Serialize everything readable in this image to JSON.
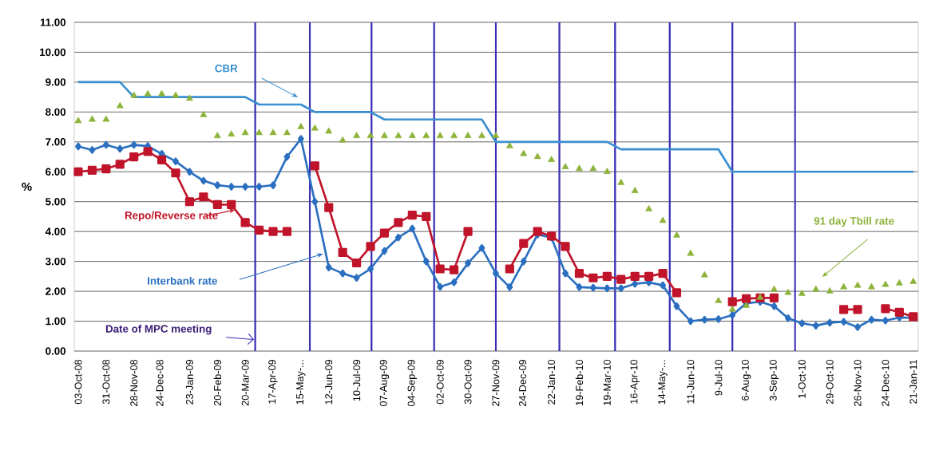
{
  "chart_data": {
    "type": "line",
    "ylabel": "%",
    "x": [
      "2008-10-03",
      "2008-10-17",
      "2008-10-31",
      "2008-11-14",
      "2008-11-28",
      "2008-12-12",
      "2008-12-26",
      "2009-01-09",
      "2009-01-23",
      "2009-02-06",
      "2009-02-20",
      "2009-03-06",
      "2009-03-20",
      "2009-04-03",
      "2009-04-17",
      "2009-05-01",
      "2009-05-15",
      "2009-05-29",
      "2009-06-12",
      "2009-06-26",
      "2009-07-10",
      "2009-07-24",
      "2009-08-07",
      "2009-08-21",
      "2009-09-04",
      "2009-09-18",
      "2009-10-02",
      "2009-10-16",
      "2009-10-30",
      "2009-11-13",
      "2009-11-27",
      "2009-12-11",
      "2009-12-25",
      "2010-01-08",
      "2010-01-22",
      "2010-02-05",
      "2010-02-19",
      "2010-03-05",
      "2010-03-19",
      "2010-04-02",
      "2010-04-16",
      "2010-04-30",
      "2010-05-14",
      "2010-05-28",
      "2010-06-11",
      "2010-06-25",
      "2010-07-09",
      "2010-07-23",
      "2010-08-06",
      "2010-08-20",
      "2010-09-03",
      "2010-09-17",
      "2010-10-01",
      "2010-10-15",
      "2010-10-29",
      "2010-11-12",
      "2010-11-26",
      "2010-12-10",
      "2010-12-24",
      "2011-01-07",
      "2011-01-21"
    ],
    "series": [
      {
        "name": "CBR",
        "color": "#3a8fd0",
        "marker": "none",
        "values": [
          9.0,
          9.0,
          9.0,
          9.0,
          8.5,
          8.5,
          8.5,
          8.5,
          8.5,
          8.5,
          8.5,
          8.5,
          8.5,
          8.25,
          8.25,
          8.25,
          8.25,
          8.0,
          8.0,
          8.0,
          8.0,
          8.0,
          7.75,
          7.75,
          7.75,
          7.75,
          7.75,
          7.75,
          7.75,
          7.75,
          7.0,
          7.0,
          7.0,
          7.0,
          7.0,
          7.0,
          7.0,
          7.0,
          7.0,
          6.75,
          6.75,
          6.75,
          6.75,
          6.75,
          6.75,
          6.75,
          6.75,
          6.0,
          6.0,
          6.0,
          6.0,
          6.0,
          6.0,
          6.0,
          6.0,
          6.0,
          6.0,
          6.0,
          6.0,
          6.0,
          6.0
        ]
      },
      {
        "name": "91 day Tbill rate",
        "type": "scatter",
        "color": "#8db33a",
        "marker": "triangle",
        "values": [
          7.7,
          7.75,
          7.75,
          8.2,
          8.55,
          8.6,
          8.6,
          8.55,
          8.45,
          7.9,
          7.2,
          7.25,
          7.3,
          7.3,
          7.3,
          7.3,
          7.5,
          7.45,
          7.35,
          7.05,
          7.2,
          7.2,
          7.2,
          7.2,
          7.2,
          7.2,
          7.2,
          7.2,
          7.2,
          7.2,
          7.2,
          6.86,
          6.6,
          6.5,
          6.4,
          6.16,
          6.1,
          6.1,
          6.0,
          5.63,
          5.36,
          4.75,
          4.36,
          3.87,
          3.26,
          2.54,
          1.68,
          1.39,
          1.52,
          1.79,
          2.06,
          1.95,
          1.92,
          2.06,
          2.0,
          2.14,
          2.19,
          2.14,
          2.22,
          2.27,
          2.32
        ]
      },
      {
        "name": "Interbank rate",
        "color": "#2a6fc0",
        "marker": "diamond",
        "values": [
          6.85,
          6.73,
          6.9,
          6.77,
          6.9,
          6.86,
          6.6,
          6.35,
          6.0,
          5.7,
          5.55,
          5.5,
          5.5,
          5.5,
          5.55,
          6.5,
          7.1,
          5.0,
          2.8,
          2.6,
          2.45,
          2.75,
          3.35,
          3.8,
          4.1,
          3.0,
          2.15,
          2.3,
          2.94,
          3.45,
          2.6,
          2.14,
          3.0,
          3.9,
          3.8,
          2.6,
          2.14,
          2.12,
          2.1,
          2.1,
          2.25,
          2.3,
          2.2,
          1.5,
          1.0,
          1.05,
          1.07,
          1.2,
          1.6,
          1.65,
          1.5,
          1.1,
          0.93,
          0.85,
          0.95,
          0.98,
          0.8,
          1.05,
          1.02,
          1.12,
          1.12
        ]
      },
      {
        "name": "Repo/Reverse rate",
        "color": "#c0142a",
        "marker": "square",
        "values": [
          6.0,
          6.05,
          6.1,
          6.25,
          6.5,
          6.68,
          6.4,
          5.96,
          5.0,
          5.16,
          4.9,
          4.9,
          4.3,
          4.05,
          4.0,
          4.0,
          null,
          6.2,
          4.8,
          3.3,
          2.95,
          3.5,
          3.95,
          4.3,
          4.55,
          4.5,
          2.75,
          2.72,
          4.0,
          null,
          null,
          2.75,
          3.6,
          4.0,
          3.85,
          3.5,
          2.6,
          2.45,
          2.5,
          2.4,
          2.5,
          2.5,
          2.6,
          1.95,
          null,
          null,
          null,
          1.65,
          1.75,
          1.78,
          1.78,
          null,
          null,
          null,
          null,
          1.39,
          1.39,
          null,
          1.42,
          1.3,
          1.15
        ]
      }
    ],
    "xlim": [
      "2008-09-29",
      "2011-01-26"
    ],
    "xticks": [
      {
        "value": "2008-10-03",
        "label": "03-Oct-08"
      },
      {
        "value": "2008-10-31",
        "label": "31-Oct-08"
      },
      {
        "value": "2008-11-28",
        "label": "28-Nov-08"
      },
      {
        "value": "2008-12-24",
        "label": "24-Dec-08"
      },
      {
        "value": "2009-01-23",
        "label": "23-Jan-09"
      },
      {
        "value": "2009-02-20",
        "label": "20-Feb-09"
      },
      {
        "value": "2009-03-20",
        "label": "20-Mar-09"
      },
      {
        "value": "2009-04-17",
        "label": "17-Apr-09"
      },
      {
        "value": "2009-05-15",
        "label": "15-May-..."
      },
      {
        "value": "2009-06-12",
        "label": "12-Jun-09"
      },
      {
        "value": "2009-07-10",
        "label": "10-Jul-09"
      },
      {
        "value": "2009-08-07",
        "label": "07-Aug-09"
      },
      {
        "value": "2009-09-04",
        "label": "04-Sep-09"
      },
      {
        "value": "2009-10-02",
        "label": "02-Oct-09"
      },
      {
        "value": "2009-10-30",
        "label": "30-Oct-09"
      },
      {
        "value": "2009-11-27",
        "label": "27-Nov-09"
      },
      {
        "value": "2009-12-24",
        "label": "24-Dec-09"
      },
      {
        "value": "2010-01-22",
        "label": "22-Jan-10"
      },
      {
        "value": "2010-02-19",
        "label": "19-Feb-10"
      },
      {
        "value": "2010-03-19",
        "label": "19-Mar-10"
      },
      {
        "value": "2010-04-16",
        "label": "16-Apr-10"
      },
      {
        "value": "2010-05-14",
        "label": "14-May-..."
      },
      {
        "value": "2010-06-11",
        "label": "11-Jun-10"
      },
      {
        "value": "2010-07-09",
        "label": "9-Jul-10"
      },
      {
        "value": "2010-08-06",
        "label": "6-Aug-10"
      },
      {
        "value": "2010-09-03",
        "label": "3-Sep-10"
      },
      {
        "value": "2010-10-01",
        "label": "1-Oct-10"
      },
      {
        "value": "2010-10-29",
        "label": "29-Oct-10"
      },
      {
        "value": "2010-11-26",
        "label": "26-Nov-10"
      },
      {
        "value": "2010-12-24",
        "label": "24-Dec-10"
      },
      {
        "value": "2011-01-21",
        "label": "21-Jan-11"
      }
    ],
    "ylim": [
      0,
      11
    ],
    "yticks": [
      {
        "value": 0,
        "label": "0.00"
      },
      {
        "value": 1,
        "label": "1.00"
      },
      {
        "value": 2,
        "label": "2.00"
      },
      {
        "value": 3,
        "label": "3.00"
      },
      {
        "value": 4,
        "label": "4.00"
      },
      {
        "value": 5,
        "label": "5.00"
      },
      {
        "value": 6,
        "label": "6.00"
      },
      {
        "value": 7,
        "label": "7.00"
      },
      {
        "value": 8,
        "label": "8.00"
      },
      {
        "value": 9,
        "label": "9.00"
      },
      {
        "value": 10,
        "label": "10.00"
      },
      {
        "value": 11,
        "label": "11.00"
      }
    ],
    "grid": "y",
    "ref_lines": [
      {
        "axis": "x",
        "value": "2009-03-30",
        "color": "#3a2fb5"
      },
      {
        "axis": "x",
        "value": "2009-05-24",
        "color": "#3a2fb5"
      },
      {
        "axis": "x",
        "value": "2009-07-25",
        "color": "#3a2fb5"
      },
      {
        "axis": "x",
        "value": "2009-09-26",
        "color": "#3a2fb5"
      },
      {
        "axis": "x",
        "value": "2009-11-27",
        "color": "#3a2fb5"
      },
      {
        "axis": "x",
        "value": "2010-01-30",
        "color": "#3a2fb5"
      },
      {
        "axis": "x",
        "value": "2010-03-27",
        "color": "#3a2fb5"
      },
      {
        "axis": "x",
        "value": "2010-05-21",
        "color": "#3a2fb5"
      },
      {
        "axis": "x",
        "value": "2010-07-23",
        "color": "#3a2fb5"
      },
      {
        "axis": "x",
        "value": "2010-09-24",
        "color": "#3a2fb5"
      }
    ],
    "annotations": [
      "Date of MPC meeting"
    ]
  }
}
